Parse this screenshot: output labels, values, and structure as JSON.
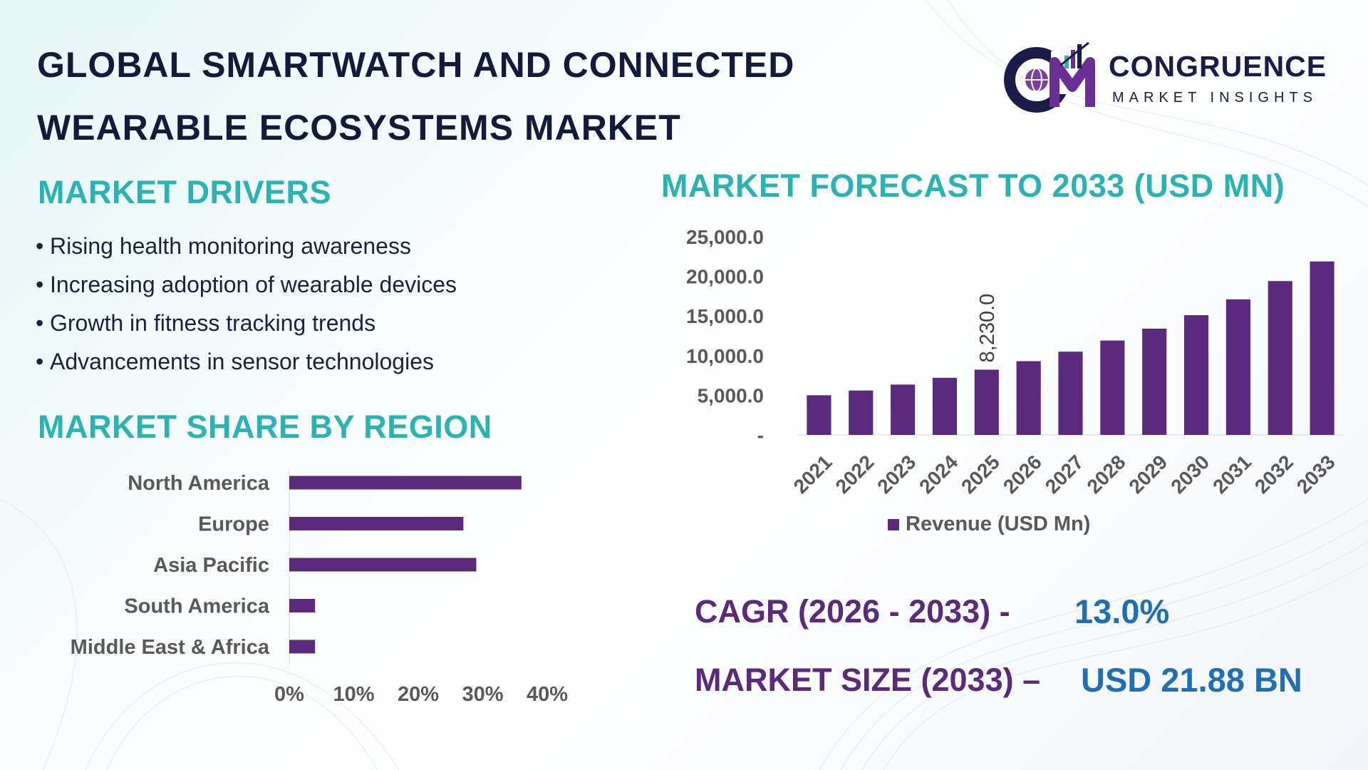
{
  "title": {
    "line1": "GLOBAL SMARTWATCH AND CONNECTED",
    "line2": "WEARABLE ECOSYSTEMS MARKET"
  },
  "logo": {
    "icon": "cm-globe-chart-logo",
    "brand": "CONGRUENCE",
    "tagline": "MARKET INSIGHTS"
  },
  "drivers": {
    "heading": "MARKET DRIVERS",
    "items": [
      "Rising health monitoring awareness",
      "Increasing adoption of wearable devices",
      "Growth in fitness tracking trends",
      "Advancements in sensor technologies"
    ]
  },
  "region": {
    "heading": "MARKET SHARE BY REGION"
  },
  "forecast": {
    "heading": "MARKET FORECAST TO 2033 (USD MN)"
  },
  "kpis": {
    "cagr_label": "CAGR (2026 - 2033) -",
    "cagr_value": "13.0%",
    "size_label": "MARKET SIZE (2033) –",
    "size_value": "USD 21.88 BN"
  },
  "colors": {
    "bar": "#5b2a7d",
    "heading": "#2ab3b3",
    "kpi_label": "#5b2a7d",
    "kpi_value": "#1f6fb5",
    "title": "#141a3a"
  },
  "chart_data": [
    {
      "type": "bar",
      "orientation": "horizontal",
      "categories": [
        "North America",
        "Europe",
        "Asia Pacific",
        "South America",
        "Middle East & Africa"
      ],
      "values": [
        36,
        27,
        29,
        4,
        4
      ],
      "unit": "%",
      "xlim": [
        0,
        40
      ],
      "xticks": [
        "0%",
        "10%",
        "20%",
        "30%",
        "40%"
      ],
      "grid": false,
      "legend": "none"
    },
    {
      "type": "bar",
      "categories": [
        "2021",
        "2022",
        "2023",
        "2024",
        "2025",
        "2026",
        "2027",
        "2028",
        "2029",
        "2030",
        "2031",
        "2032",
        "2033"
      ],
      "series": [
        {
          "name": "Revenue (USD Mn)",
          "values": [
            5000,
            5600,
            6350,
            7200,
            8230,
            9300,
            10500,
            11900,
            13400,
            15100,
            17100,
            19400,
            21880
          ]
        }
      ],
      "data_labels": [
        {
          "category": "2025",
          "text": "8,230.0"
        }
      ],
      "ylim": [
        0,
        25000
      ],
      "yticks": [
        "-",
        "5,000.0",
        "10,000.0",
        "15,000.0",
        "20,000.0",
        "25,000.0"
      ],
      "grid": false,
      "legend": "bottom"
    }
  ]
}
